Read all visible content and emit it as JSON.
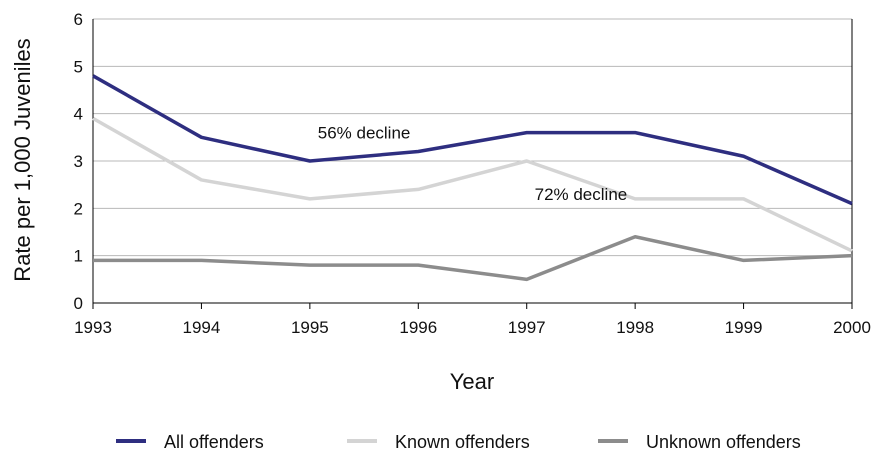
{
  "chart_data": {
    "type": "line",
    "title": "",
    "xlabel": "Year",
    "ylabel": "Rate per 1,000 Juveniles",
    "x": [
      "1993",
      "1994",
      "1995",
      "1996",
      "1997",
      "1998",
      "1999",
      "2000"
    ],
    "ylim": [
      0,
      6
    ],
    "yticks": [
      "0",
      "1",
      "2",
      "3",
      "4",
      "5",
      "6"
    ],
    "grid": true,
    "legend_position": "bottom",
    "series": [
      {
        "name": "All offenders",
        "color": "#2e2e80",
        "values": [
          4.8,
          3.5,
          3.0,
          3.2,
          3.6,
          3.6,
          3.1,
          2.1
        ]
      },
      {
        "name": "Known offenders",
        "color": "#d4d4d4",
        "values": [
          3.9,
          2.6,
          2.2,
          2.4,
          3.0,
          2.2,
          2.2,
          1.1
        ]
      },
      {
        "name": "Unknown offenders",
        "color": "#8c8c8c",
        "values": [
          0.9,
          0.9,
          0.8,
          0.8,
          0.5,
          1.4,
          0.9,
          1.0
        ]
      }
    ],
    "annotations": [
      {
        "text": "56% decline",
        "x": "1995.5",
        "y": 3.6
      },
      {
        "text": "72% decline",
        "x": "1997.5",
        "y": 2.3
      }
    ]
  }
}
